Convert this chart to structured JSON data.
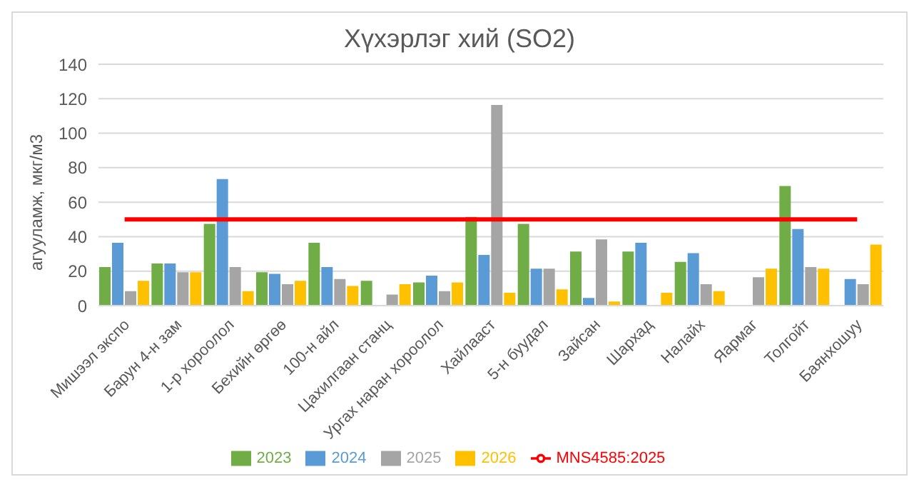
{
  "chart_data": {
    "type": "bar",
    "title": "Хүхэрлэг хий (SO2)",
    "ylabel": "агууламж, мкг/м3",
    "categories": [
      "Мишээл экспо",
      "Барун 4-н зам",
      "1-р хороолол",
      "Бехийн өргөө",
      "100-н айл",
      "Цахилгаан станц",
      "Ургах наран хороолол",
      "Хайлааст",
      "5-н буудал",
      "Зайсан",
      "Шархад",
      "Налайх",
      "Яармаг",
      "Толгойт",
      "Баянхошуу"
    ],
    "series": [
      {
        "name": "2023",
        "color": "#70ad47",
        "values": [
          22,
          24,
          47,
          19,
          36,
          14,
          13,
          51,
          47,
          31,
          31,
          25,
          null,
          69,
          null
        ]
      },
      {
        "name": "2024",
        "color": "#5b9bd5",
        "values": [
          36,
          24,
          73,
          18,
          22,
          null,
          17,
          29,
          21,
          4,
          36,
          30,
          null,
          44,
          15
        ]
      },
      {
        "name": "2025",
        "color": "#a5a5a5",
        "values": [
          8,
          19,
          22,
          12,
          15,
          6,
          8,
          116,
          21,
          38,
          null,
          12,
          16,
          22,
          12
        ]
      },
      {
        "name": "2026",
        "color": "#ffc000",
        "values": [
          14,
          19,
          8,
          14,
          11,
          12,
          13,
          7,
          9,
          2,
          7,
          8,
          21,
          21,
          35
        ]
      },
      {
        "name": "MNS4585:2025",
        "type": "line",
        "color": "#ff0000",
        "values": [
          50,
          50,
          50,
          50,
          50,
          50,
          50,
          50,
          50,
          50,
          50,
          50,
          50,
          50,
          50
        ]
      }
    ],
    "ylim": [
      0,
      140
    ],
    "yticks": [
      0,
      20,
      40,
      60,
      80,
      100,
      120,
      140
    ],
    "grid": "y",
    "legend": "bottom",
    "marker": "none"
  }
}
